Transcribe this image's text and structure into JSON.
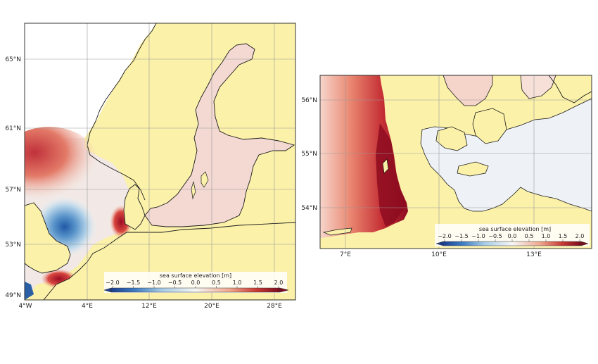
{
  "colors": {
    "land": "#fbf1a9",
    "negative_max": "#1b5fa8",
    "neutral": "#f6f6f4",
    "positive_max": "#8a0c1e"
  },
  "maps": [
    {
      "name": "north-sea-baltic",
      "colorbar": {
        "label": "sea surface elevation [m]",
        "ticks": [
          "−2.0",
          "−1.5",
          "−1.0",
          "−0.5",
          "0.0",
          "0.5",
          "1.0",
          "1.5",
          "2.0"
        ],
        "range": [
          -2.0,
          2.0
        ]
      },
      "lon_labels": [
        "4°W",
        "4°E",
        "12°E",
        "20°E",
        "28°E"
      ],
      "lat_labels": [
        "65°N",
        "61°N",
        "57°N",
        "53°N",
        "49°N"
      ]
    },
    {
      "name": "danish-straits",
      "colorbar": {
        "label": "sea surface elevation [m]",
        "ticks": [
          "−2.0",
          "−1.5",
          "−1.0",
          "−0.5",
          "0.0",
          "0.5",
          "1.0",
          "1.5",
          "2.0"
        ],
        "range": [
          -2.0,
          2.0
        ]
      },
      "lon_labels": [
        "7°E",
        "10°E",
        "13°E"
      ],
      "lat_labels": [
        "56°N",
        "55°N",
        "54°N"
      ]
    }
  ]
}
